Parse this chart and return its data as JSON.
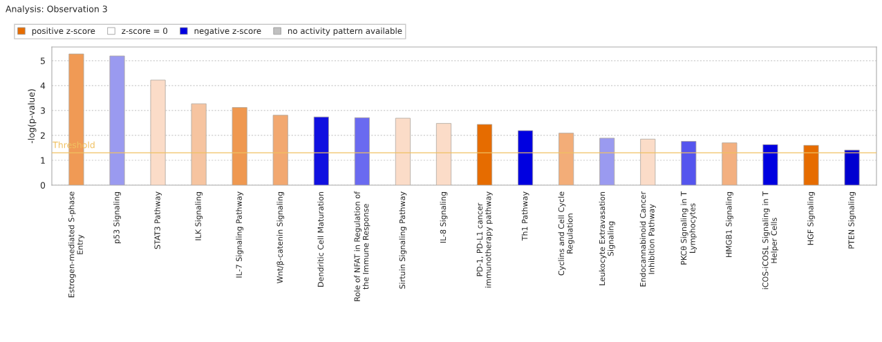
{
  "chart_data": {
    "type": "bar",
    "title": "Analysis: Observation 3",
    "ylabel": "-log(p-value)",
    "categories": [
      "Estrogen-mediated S-phase\nEntry",
      "p53 Signaling",
      "STAT3 Pathway",
      "ILK Signaling",
      "IL-7 Signaling Pathway",
      "Wnt/β-catenin Signaling",
      "Dendritic Cell Maturation",
      "Role of NFAT in Regulation of\nthe Immune Response",
      "Sirtuin Signaling Pathway",
      "IL-8 Signaling",
      "PD-1, PD-L1 cancer\nimmunotherapy pathway",
      "Th1 Pathway",
      "Cyclins and Cell Cycle\nRegulation",
      "Leukocyte Extravasation\nSignaling",
      "Endocannabinoid Cancer\nInhibition Pathway",
      "PKCθ Signaling in T\nLymphocytes",
      "HMGB1 Signaling",
      "iCOS-iCOSL Signaling in T\nHelper Cells",
      "HGF Signaling",
      "PTEN Signaling"
    ],
    "series": [
      {
        "name": "positive z-score",
        "color": "#e66c00",
        "values": [
          5.27,
          null,
          4.22,
          3.27,
          3.12,
          2.81,
          null,
          null,
          2.69,
          2.48,
          2.44,
          null,
          2.09,
          null,
          1.85,
          null,
          1.7,
          null,
          1.6,
          null
        ],
        "colors": [
          "#f09a55",
          null,
          "#fbdcc8",
          "#f6c4a0",
          "#ef9850",
          "#f2a870",
          null,
          null,
          "#fbdcc8",
          "#fbdcc8",
          "#e66c00",
          null,
          "#f3ad78",
          null,
          "#fbdcc8",
          null,
          "#f3b080",
          null,
          "#e66c00",
          null
        ]
      },
      {
        "name": "z-score = 0",
        "color": "#ffffff",
        "values": [
          null,
          null,
          null,
          null,
          null,
          null,
          null,
          null,
          null,
          null,
          null,
          null,
          null,
          null,
          null,
          null,
          null,
          null,
          null,
          null
        ]
      },
      {
        "name": "negative z-score",
        "color": "#0000e0",
        "values": [
          null,
          5.19,
          null,
          null,
          null,
          null,
          2.74,
          2.71,
          null,
          null,
          null,
          2.19,
          null,
          1.89,
          null,
          1.76,
          null,
          1.63,
          null,
          1.41
        ],
        "colors": [
          null,
          "#9a9af0",
          null,
          null,
          null,
          null,
          "#1010e0",
          "#6a6af0",
          null,
          null,
          null,
          "#0000e0",
          null,
          "#9a9af0",
          null,
          "#5555ee",
          null,
          "#0000e0",
          null,
          "#0000d0"
        ]
      },
      {
        "name": "no activity pattern available",
        "color": "#c0c0c0",
        "values": [
          null,
          null,
          null,
          null,
          null,
          null,
          null,
          null,
          null,
          null,
          null,
          null,
          null,
          null,
          null,
          null,
          null,
          null,
          null,
          null
        ]
      }
    ],
    "ylim": [
      0,
      5.55
    ],
    "yticks": [
      0,
      1,
      2,
      3,
      4,
      5
    ],
    "grid": "y",
    "legend": "top left",
    "ref_lines": [
      {
        "axis": "y",
        "value": 1.3,
        "label": "Threshold",
        "color": "#f0c060"
      }
    ]
  }
}
